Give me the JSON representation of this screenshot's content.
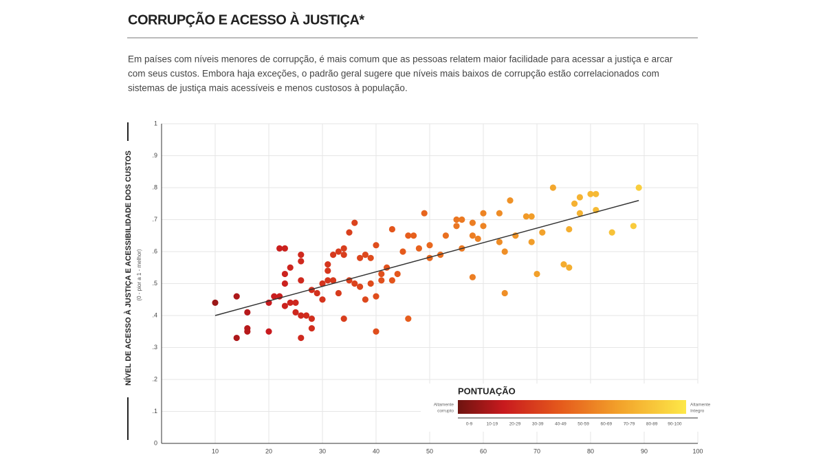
{
  "chart_data": {
    "type": "scatter",
    "title": "CORRUPÇÃO E ACESSO À JUSTIÇA*",
    "subtitle_lines": [
      "Em países com níveis menores de corrupção, é mais comum que as pessoas relatem maior facilidade para acessar a justiça e arcar",
      "com seus custos. Embora haja exceções, o padrão geral sugere que níveis mais baixos de corrupção estão correlacionados com",
      "sistemas de justiça mais acessíveis e menos custosos à população."
    ],
    "ylabel": "NÍVEL DE ACESSO À JUSTIÇA E ACESSIBILIDADE DOS CUSTOS",
    "ylabel_note": "(0 - pior a 1 - melhor)",
    "x": [
      10,
      14,
      14,
      16,
      16,
      16,
      20,
      20,
      21,
      22,
      22,
      23,
      23,
      23,
      24,
      24,
      25,
      25,
      26,
      26,
      26,
      26,
      26,
      27,
      28,
      28,
      28,
      29,
      30,
      30,
      31,
      31,
      32,
      32,
      33,
      33,
      34,
      34,
      35,
      36,
      36,
      37,
      37,
      38,
      38,
      39,
      39,
      40,
      40,
      40,
      41,
      42,
      43,
      43,
      44,
      45,
      46,
      46,
      47,
      48,
      49,
      50,
      50,
      52,
      53,
      55,
      55,
      56,
      56,
      58,
      58,
      58,
      59,
      60,
      60,
      63,
      63,
      64,
      64,
      65,
      66,
      68,
      69,
      69,
      70,
      71,
      73,
      75,
      76,
      76,
      77,
      78,
      78,
      80,
      81,
      81,
      84,
      88,
      89,
      23,
      31,
      34,
      35,
      41
    ],
    "y": [
      0.44,
      0.46,
      0.33,
      0.41,
      0.36,
      0.35,
      0.35,
      0.44,
      0.46,
      0.46,
      0.61,
      0.61,
      0.53,
      0.43,
      0.55,
      0.44,
      0.44,
      0.41,
      0.59,
      0.57,
      0.51,
      0.4,
      0.33,
      0.4,
      0.39,
      0.36,
      0.48,
      0.47,
      0.45,
      0.5,
      0.54,
      0.51,
      0.59,
      0.51,
      0.6,
      0.47,
      0.61,
      0.39,
      0.66,
      0.69,
      0.5,
      0.58,
      0.49,
      0.59,
      0.45,
      0.58,
      0.5,
      0.62,
      0.46,
      0.35,
      0.51,
      0.55,
      0.67,
      0.51,
      0.53,
      0.6,
      0.65,
      0.39,
      0.65,
      0.61,
      0.72,
      0.62,
      0.58,
      0.59,
      0.65,
      0.68,
      0.7,
      0.7,
      0.61,
      0.69,
      0.65,
      0.52,
      0.64,
      0.68,
      0.72,
      0.72,
      0.63,
      0.6,
      0.47,
      0.76,
      0.65,
      0.71,
      0.63,
      0.71,
      0.53,
      0.66,
      0.8,
      0.56,
      0.55,
      0.67,
      0.75,
      0.77,
      0.72,
      0.78,
      0.78,
      0.73,
      0.66,
      0.68,
      0.8,
      0.5,
      0.56,
      0.59,
      0.51,
      0.53
    ],
    "colorscale": [
      {
        "value": 0,
        "color": "#6e1410"
      },
      {
        "value": 20,
        "color": "#c81a1e"
      },
      {
        "value": 45,
        "color": "#e55a1c"
      },
      {
        "value": 70,
        "color": "#f2a02a"
      },
      {
        "value": 100,
        "color": "#fde848"
      }
    ],
    "trendline": {
      "x": [
        10,
        89
      ],
      "y": [
        0.4,
        0.76
      ],
      "color": "#333333"
    },
    "xlim": [
      0,
      100
    ],
    "ylim": [
      0,
      1
    ],
    "xticks": [
      10,
      20,
      30,
      40,
      50,
      60,
      70,
      80,
      90,
      100
    ],
    "yticks": [
      0,
      {
        "value": 0.1,
        "label": ".1"
      },
      {
        "value": 0.2,
        "label": ".2"
      },
      {
        "value": 0.3,
        "label": ".3"
      },
      {
        "value": 0.4,
        "label": ".4"
      },
      {
        "value": 0.5,
        "label": ".5"
      },
      {
        "value": 0.6,
        "label": ".6"
      },
      {
        "value": 0.7,
        "label": ".7"
      },
      {
        "value": 0.8,
        "label": ".8"
      },
      {
        "value": 0.9,
        "label": ".9"
      },
      1
    ],
    "grid": true,
    "legend": {
      "title": "PONTUAÇÃO",
      "low_label": [
        "Altamente",
        "corrupto"
      ],
      "high_label": [
        "Altamente",
        "íntegro"
      ],
      "bins": [
        "0-9",
        "10-19",
        "20-29",
        "30-39",
        "40-49",
        "50-59",
        "60-69",
        "70-79",
        "80-89",
        "90-100"
      ]
    }
  }
}
